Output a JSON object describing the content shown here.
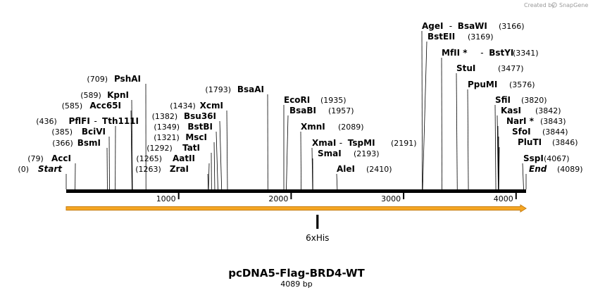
{
  "credit": {
    "prefix": "Created by",
    "brand": "SnapGene"
  },
  "map": {
    "title": "pcDNA5-Flag-BRD4-WT",
    "length_text": "4089 bp",
    "length_bp": 4089
  },
  "chart_data": {
    "type": "plasmid-linear-map",
    "sequence_length": 4089,
    "ruler_ticks": [
      {
        "value": 1000,
        "label": "1000"
      },
      {
        "value": 2000,
        "label": "2000"
      },
      {
        "value": 3000,
        "label": "3000"
      },
      {
        "value": 4000,
        "label": "4000"
      }
    ],
    "features": [
      {
        "name": "6xHis",
        "start": 2224,
        "end": 2244,
        "color": "#000000"
      }
    ],
    "orf_arrow": {
      "start": 0,
      "end": 4089,
      "color": "#f5a623",
      "outline": "#c77d0f"
    },
    "sites": [
      {
        "name": "Start",
        "pos_text": "(0)",
        "pos": 0,
        "italic": true,
        "pos_side": "left"
      },
      {
        "name": "AccI",
        "pos_text": "(79)",
        "pos": 79,
        "pos_side": "left"
      },
      {
        "name": "BsmI",
        "pos_text": "(366)",
        "pos": 366,
        "pos_side": "left"
      },
      {
        "name": "BciVI",
        "pos_text": "(385)",
        "pos": 385,
        "pos_side": "left"
      },
      {
        "name": "PflFI",
        "name2": "Tth111I",
        "pos_text": "(436)",
        "pos": 436,
        "pos_side": "left"
      },
      {
        "name": "Acc65I",
        "pos_text": "(585)",
        "pos": 585,
        "pos_side": "left"
      },
      {
        "name": "KpnI",
        "pos_text": "(589)",
        "pos": 589,
        "pos_side": "left"
      },
      {
        "name": "PshAI",
        "pos_text": "(709)",
        "pos": 709,
        "pos_side": "left"
      },
      {
        "name": "ZraI",
        "pos_text": "(1263)",
        "pos": 1263,
        "pos_side": "left"
      },
      {
        "name": "AatII",
        "pos_text": "(1265)",
        "pos": 1265,
        "pos_side": "left"
      },
      {
        "name": "TatI",
        "pos_text": "(1292)",
        "pos": 1292,
        "pos_side": "left"
      },
      {
        "name": "MscI",
        "pos_text": "(1321)",
        "pos": 1321,
        "pos_side": "left"
      },
      {
        "name": "BstBI",
        "pos_text": "(1349)",
        "pos": 1349,
        "pos_side": "left"
      },
      {
        "name": "Bsu36I",
        "pos_text": "(1382)",
        "pos": 1382,
        "pos_side": "left"
      },
      {
        "name": "XcmI",
        "pos_text": "(1434)",
        "pos": 1434,
        "pos_side": "left"
      },
      {
        "name": "BsaAI",
        "pos_text": "(1793)",
        "pos": 1793,
        "pos_side": "left"
      },
      {
        "name": "EcoRI",
        "pos_text": "(1935)",
        "pos": 1935,
        "pos_side": "right"
      },
      {
        "name": "BsaBI",
        "pos_text": "(1957)",
        "pos": 1957,
        "pos_side": "right"
      },
      {
        "name": "XmnI",
        "pos_text": "(2089)",
        "pos": 2089,
        "pos_side": "right"
      },
      {
        "name": "XmaI",
        "name2": "TspMI",
        "pos_text": "(2191)",
        "pos": 2191,
        "pos_side": "right"
      },
      {
        "name": "SmaI",
        "pos_text": "(2193)",
        "pos": 2193,
        "pos_side": "right"
      },
      {
        "name": "AleI",
        "pos_text": "(2410)",
        "pos": 2410,
        "pos_side": "right"
      },
      {
        "name": "AgeI",
        "name2": "BsaWI",
        "pos_text": "(3166)",
        "pos": 3166,
        "pos_side": "right"
      },
      {
        "name": "BstEII",
        "pos_text": "(3169)",
        "pos": 3169,
        "pos_side": "right"
      },
      {
        "name": "MfII *",
        "name2": "BstYI",
        "pos_text": "(3341)",
        "pos": 3341,
        "pos_side": "right"
      },
      {
        "name": "StuI",
        "pos_text": "(3477)",
        "pos": 3477,
        "pos_side": "right"
      },
      {
        "name": "PpuMI",
        "pos_text": "(3576)",
        "pos": 3576,
        "pos_side": "right"
      },
      {
        "name": "SfiI",
        "pos_text": "(3820)",
        "pos": 3820,
        "pos_side": "right"
      },
      {
        "name": "KasI",
        "pos_text": "(3842)",
        "pos": 3842,
        "pos_side": "right"
      },
      {
        "name": "NarI *",
        "pos_text": "(3843)",
        "pos": 3843,
        "pos_side": "right"
      },
      {
        "name": "SfoI",
        "pos_text": "(3844)",
        "pos": 3844,
        "pos_side": "right"
      },
      {
        "name": "PluTI",
        "pos_text": "(3846)",
        "pos": 3846,
        "pos_side": "right"
      },
      {
        "name": "SspI",
        "pos_text": "(4067)",
        "pos": 4067,
        "pos_side": "right"
      },
      {
        "name": "End",
        "pos_text": "(4089)",
        "pos": 4089,
        "italic": true,
        "pos_side": "right"
      }
    ]
  }
}
